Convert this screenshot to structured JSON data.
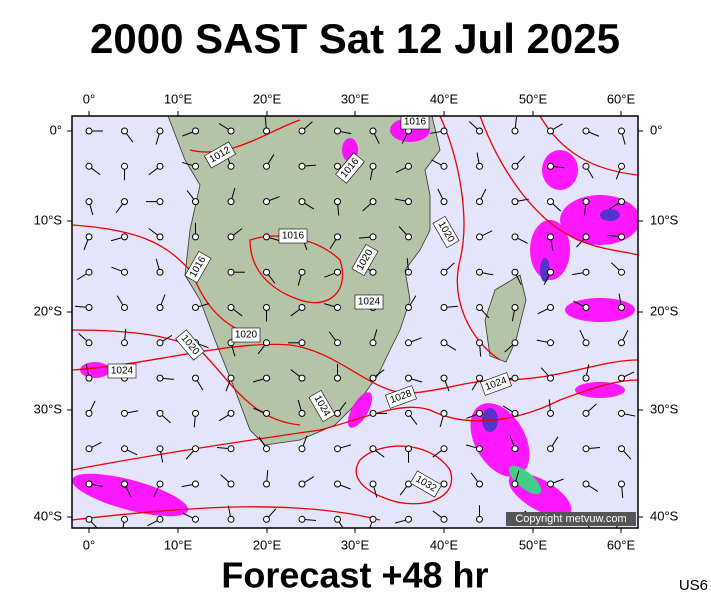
{
  "title": "2000 SAST Sat 12 Jul 2025",
  "footer": "Forecast +48 hr",
  "code": "US6",
  "copyright": "Copyright metvuw.com",
  "lon_labels": [
    "0°",
    "10°E",
    "20°E",
    "30°E",
    "40°E",
    "50°E",
    "60°E"
  ],
  "lat_labels": [
    "0°",
    "10°S",
    "20°S",
    "30°S",
    "40°S"
  ],
  "isobar_labels": [
    "1016",
    "1012",
    "1016",
    "1016",
    "1016",
    "1020",
    "1020",
    "1024",
    "1020",
    "1020",
    "1024",
    "1024",
    "1028",
    "1024",
    "1032"
  ]
}
